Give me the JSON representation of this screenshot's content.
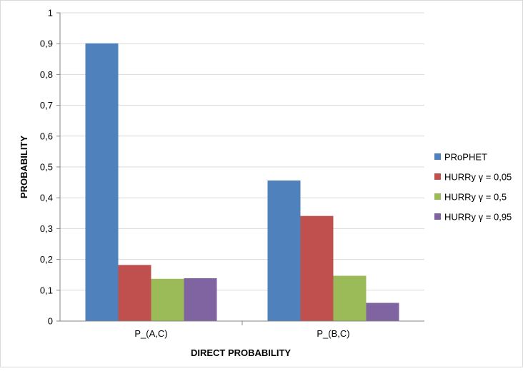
{
  "chart_data": {
    "type": "bar",
    "categories": [
      "P_(A,C)",
      "P_(B,C)"
    ],
    "series": [
      {
        "name": "PRoPHET",
        "values": [
          0.901,
          0.456
        ],
        "color": "#4F81BD"
      },
      {
        "name": "HURRy γ = 0,05",
        "values": [
          0.182,
          0.341
        ],
        "color": "#C0504D"
      },
      {
        "name": "HURRy γ = 0,5",
        "values": [
          0.137,
          0.147
        ],
        "color": "#9BBB59"
      },
      {
        "name": "HURRy γ = 0,95",
        "values": [
          0.139,
          0.059
        ],
        "color": "#8064A2"
      }
    ],
    "title": "",
    "xlabel": "DIRECT PROBABILITY",
    "ylabel": "PROBABILITY",
    "ylim": [
      0,
      1
    ],
    "yticks": [
      "0",
      "0,1",
      "0,2",
      "0,3",
      "0,4",
      "0,5",
      "0,6",
      "0,7",
      "0,8",
      "0,9",
      "1"
    ],
    "grid": true,
    "legend": "right"
  }
}
